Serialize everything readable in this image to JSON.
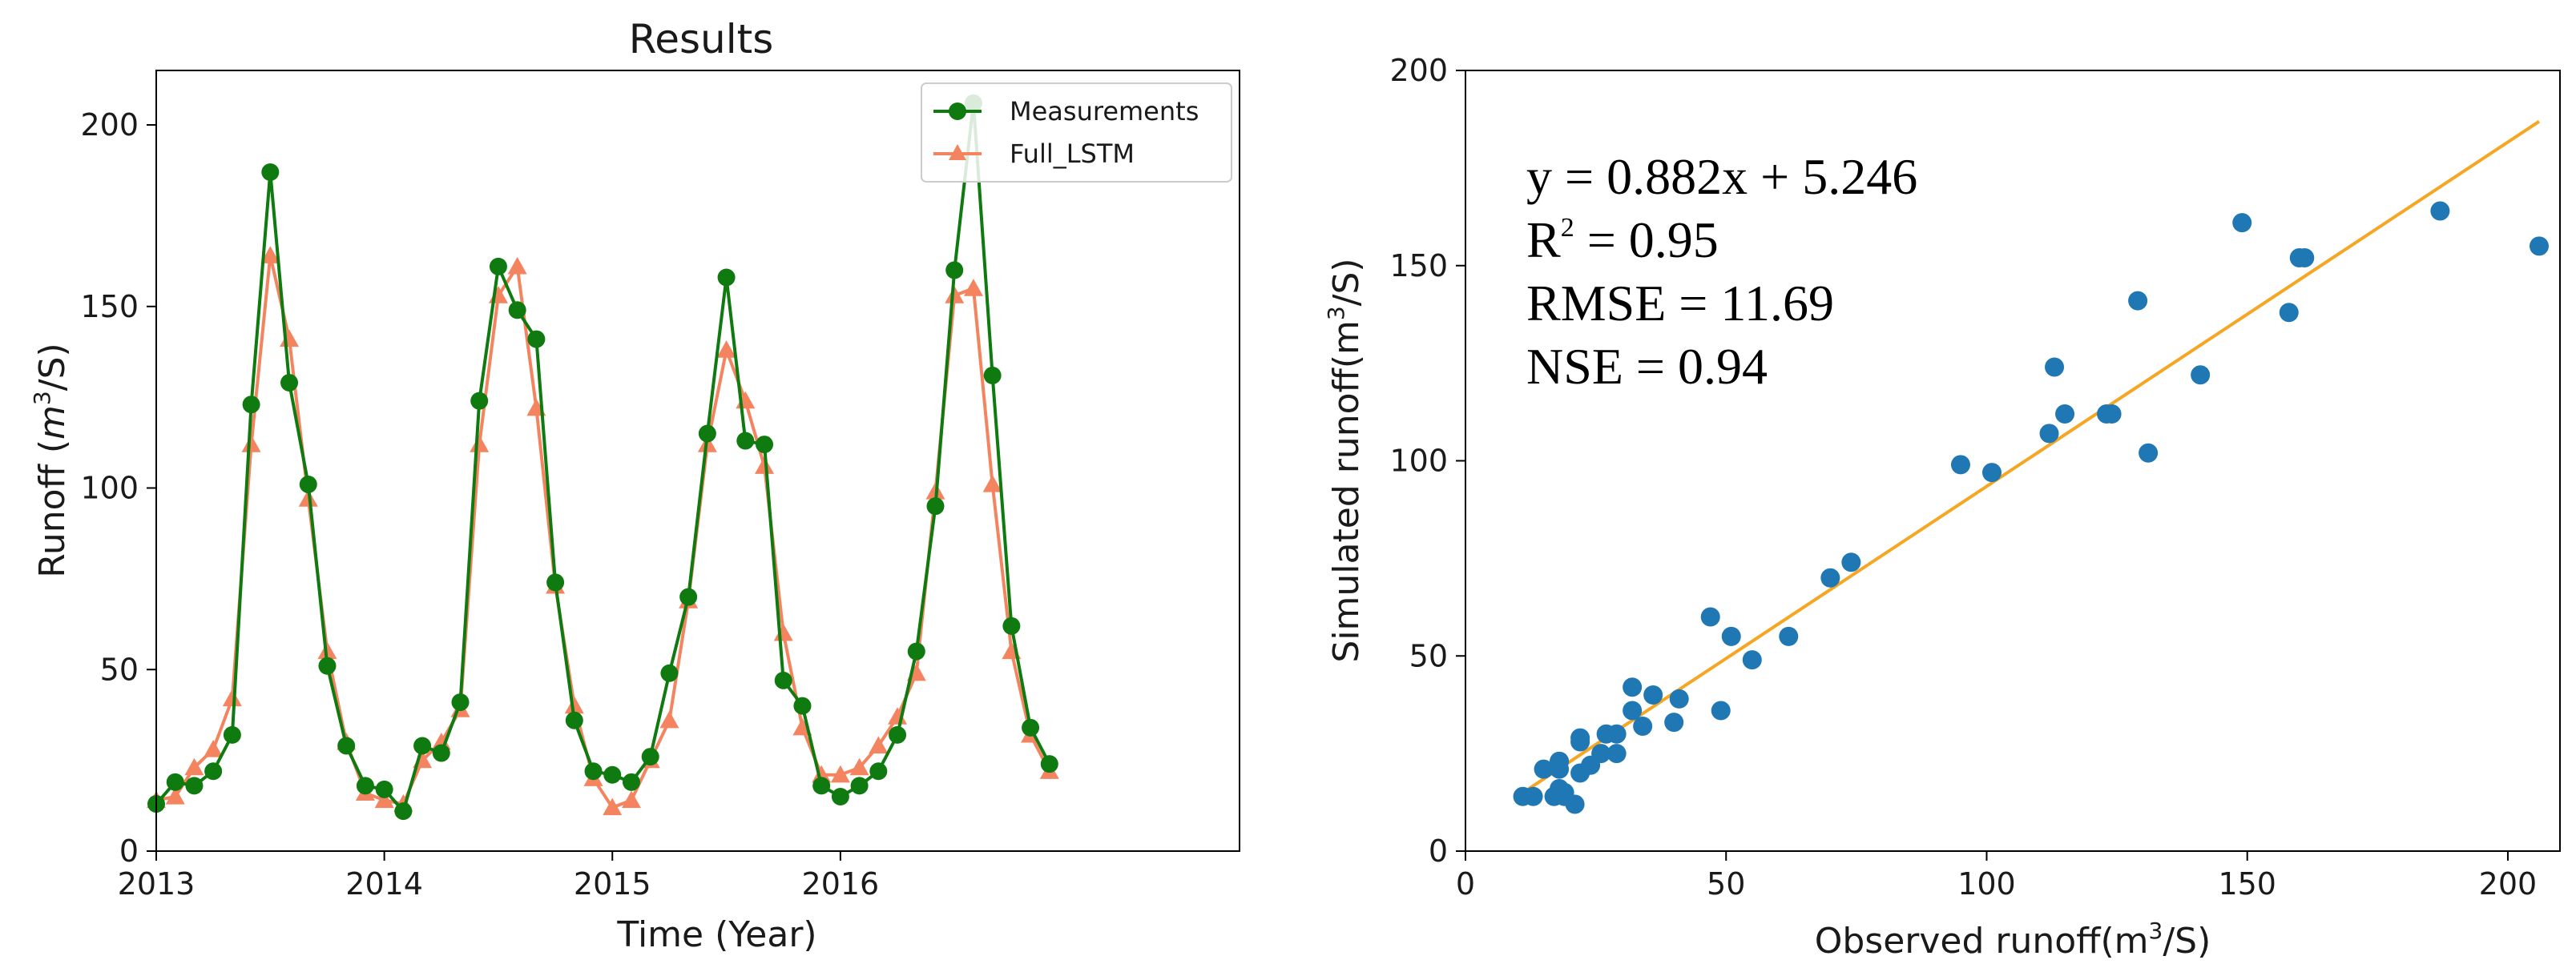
{
  "colors": {
    "measurements": "#0f7a0f",
    "full_lstm": "#f4845f",
    "scatter": "#1f77b4",
    "fit_line": "#f5a623",
    "axis": "#000000"
  },
  "chart_data": [
    {
      "type": "line",
      "title": "Results",
      "xlabel": "Time (Year)",
      "ylabel": "Runoff ($m^3$/S)",
      "ylabel_parts": {
        "pre": "Runoff (",
        "var": "m",
        "sup": "3",
        "post": "/S)"
      },
      "x_unit": "month index from Jan 2013",
      "xlim": [
        0,
        57
      ],
      "ylim": [
        0,
        215
      ],
      "xticks": [
        {
          "x": 0,
          "label": "2013"
        },
        {
          "x": 12,
          "label": "2014"
        },
        {
          "x": 24,
          "label": "2015"
        },
        {
          "x": 36,
          "label": "2016"
        }
      ],
      "yticks": [
        {
          "y": 0,
          "label": "0"
        },
        {
          "y": 50,
          "label": "50"
        },
        {
          "y": 100,
          "label": "100"
        },
        {
          "y": 150,
          "label": "150"
        },
        {
          "y": 200,
          "label": "200"
        }
      ],
      "legend": {
        "position": "top-right"
      },
      "series": [
        {
          "name": "Measurements",
          "marker": "circle",
          "color": "#0f7a0f",
          "values": [
            13,
            19,
            18,
            22,
            32,
            123,
            187,
            129,
            101,
            51,
            29,
            18,
            17,
            11,
            29,
            27,
            41,
            124,
            161,
            149,
            141,
            74,
            36,
            22,
            21,
            19,
            26,
            49,
            70,
            115,
            158,
            113,
            112,
            47,
            40,
            18,
            15,
            18,
            22,
            32,
            55,
            95,
            160,
            206,
            131,
            62,
            34,
            24
          ]
        },
        {
          "name": "Full_LSTM",
          "marker": "triangle",
          "color": "#f4845f",
          "values": [
            14,
            15,
            23,
            28,
            42,
            112,
            164,
            141,
            97,
            55,
            30,
            16,
            14,
            13,
            25,
            30,
            39,
            112,
            153,
            161,
            122,
            73,
            40,
            20,
            12,
            14,
            25,
            36,
            69,
            112,
            138,
            124,
            106,
            60,
            34,
            21,
            21,
            23,
            29,
            37,
            49,
            99,
            153,
            155,
            101,
            55,
            32,
            22
          ]
        }
      ]
    },
    {
      "type": "scatter",
      "title": "",
      "xlabel": "Observed runoff(m³/S)",
      "ylabel": "Simulated runoff(m³/S)",
      "xlabel_parts": {
        "pre": "Observed runoff(m",
        "sup": "3",
        "post": "/S)"
      },
      "ylabel_parts": {
        "pre": "Simulated runoff(m",
        "sup": "3",
        "post": "/S)"
      },
      "xlim": [
        0,
        210
      ],
      "ylim": [
        0,
        200
      ],
      "xticks": [
        0,
        50,
        100,
        150,
        200
      ],
      "yticks": [
        0,
        50,
        100,
        150,
        200
      ],
      "annotation": {
        "equation": "y = 0.882x + 5.246",
        "r2_pre": "R",
        "r2_sup": "2",
        "r2_post": " = 0.95",
        "rmse": "RMSE = 11.69",
        "nse": "NSE = 0.94"
      },
      "fit": {
        "slope": 0.882,
        "intercept": 5.246,
        "x_range": [
          11,
          206
        ]
      },
      "points": [
        {
          "x": 13,
          "y": 14
        },
        {
          "x": 19,
          "y": 15
        },
        {
          "x": 18,
          "y": 23
        },
        {
          "x": 22,
          "y": 28
        },
        {
          "x": 32,
          "y": 42
        },
        {
          "x": 123,
          "y": 112
        },
        {
          "x": 187,
          "y": 164
        },
        {
          "x": 129,
          "y": 141
        },
        {
          "x": 101,
          "y": 97
        },
        {
          "x": 51,
          "y": 55
        },
        {
          "x": 29,
          "y": 30
        },
        {
          "x": 18,
          "y": 16
        },
        {
          "x": 17,
          "y": 14
        },
        {
          "x": 11,
          "y": 14
        },
        {
          "x": 29,
          "y": 25
        },
        {
          "x": 27,
          "y": 30
        },
        {
          "x": 41,
          "y": 39
        },
        {
          "x": 124,
          "y": 112
        },
        {
          "x": 161,
          "y": 152
        },
        {
          "x": 149,
          "y": 161
        },
        {
          "x": 141,
          "y": 122
        },
        {
          "x": 74,
          "y": 74
        },
        {
          "x": 36,
          "y": 40
        },
        {
          "x": 22,
          "y": 20
        },
        {
          "x": 21,
          "y": 12
        },
        {
          "x": 19,
          "y": 14
        },
        {
          "x": 26,
          "y": 25
        },
        {
          "x": 49,
          "y": 36
        },
        {
          "x": 70,
          "y": 70
        },
        {
          "x": 115,
          "y": 112
        },
        {
          "x": 158,
          "y": 138
        },
        {
          "x": 113,
          "y": 124
        },
        {
          "x": 112,
          "y": 107
        },
        {
          "x": 47,
          "y": 60
        },
        {
          "x": 40,
          "y": 33
        },
        {
          "x": 18,
          "y": 21
        },
        {
          "x": 15,
          "y": 21
        },
        {
          "x": 18,
          "y": 23
        },
        {
          "x": 22,
          "y": 29
        },
        {
          "x": 32,
          "y": 36
        },
        {
          "x": 55,
          "y": 49
        },
        {
          "x": 95,
          "y": 99
        },
        {
          "x": 160,
          "y": 152
        },
        {
          "x": 206,
          "y": 155
        },
        {
          "x": 131,
          "y": 102
        },
        {
          "x": 62,
          "y": 55
        },
        {
          "x": 34,
          "y": 32
        },
        {
          "x": 24,
          "y": 22
        }
      ]
    }
  ]
}
